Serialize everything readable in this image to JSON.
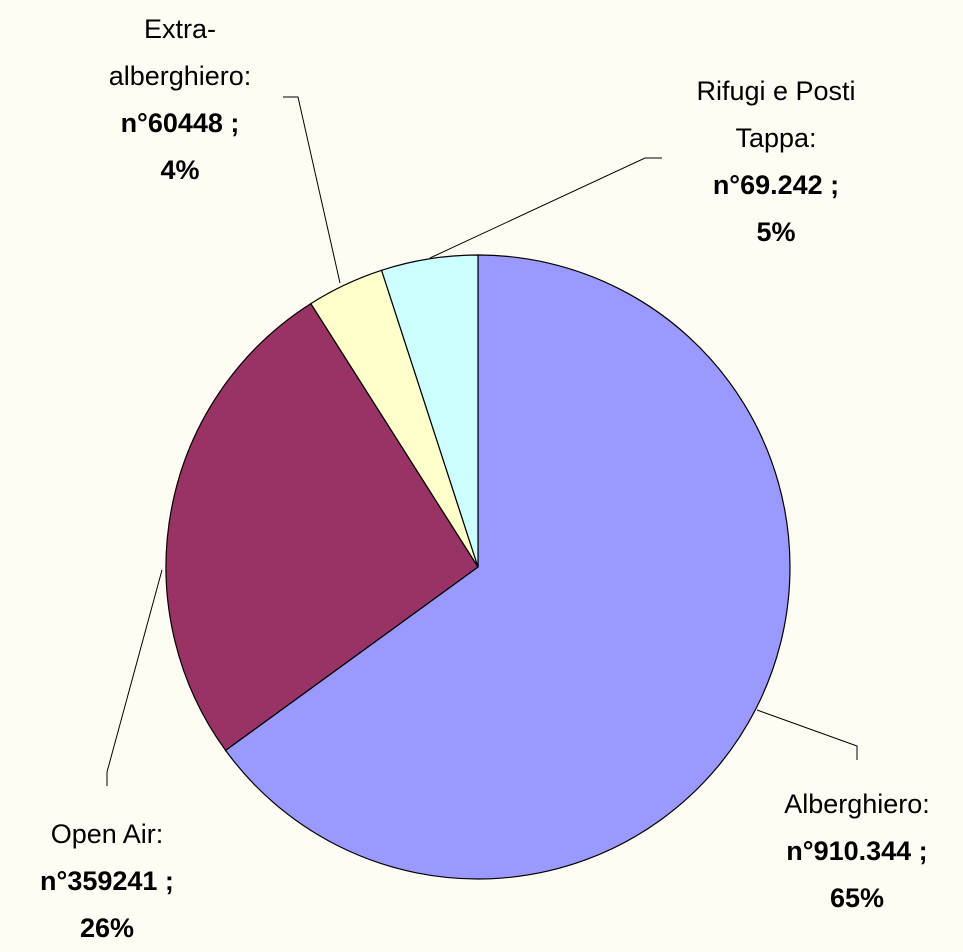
{
  "chart_data": {
    "type": "pie",
    "categories": [
      "Alberghiero:",
      "Open Air:",
      "Extra-alberghiero:",
      "Rifugi e Posti Tappa:"
    ],
    "count_labels": [
      "n°910.344 ;",
      "n°359241 ;",
      "n°60448 ;",
      "n°69.242 ;"
    ],
    "values": [
      65,
      26,
      4,
      5
    ],
    "value_labels": [
      "65%",
      "26%",
      "4%",
      "5%"
    ],
    "colors": [
      "#9999ff",
      "#993366",
      "#ffffcc",
      "#ccffff"
    ]
  }
}
